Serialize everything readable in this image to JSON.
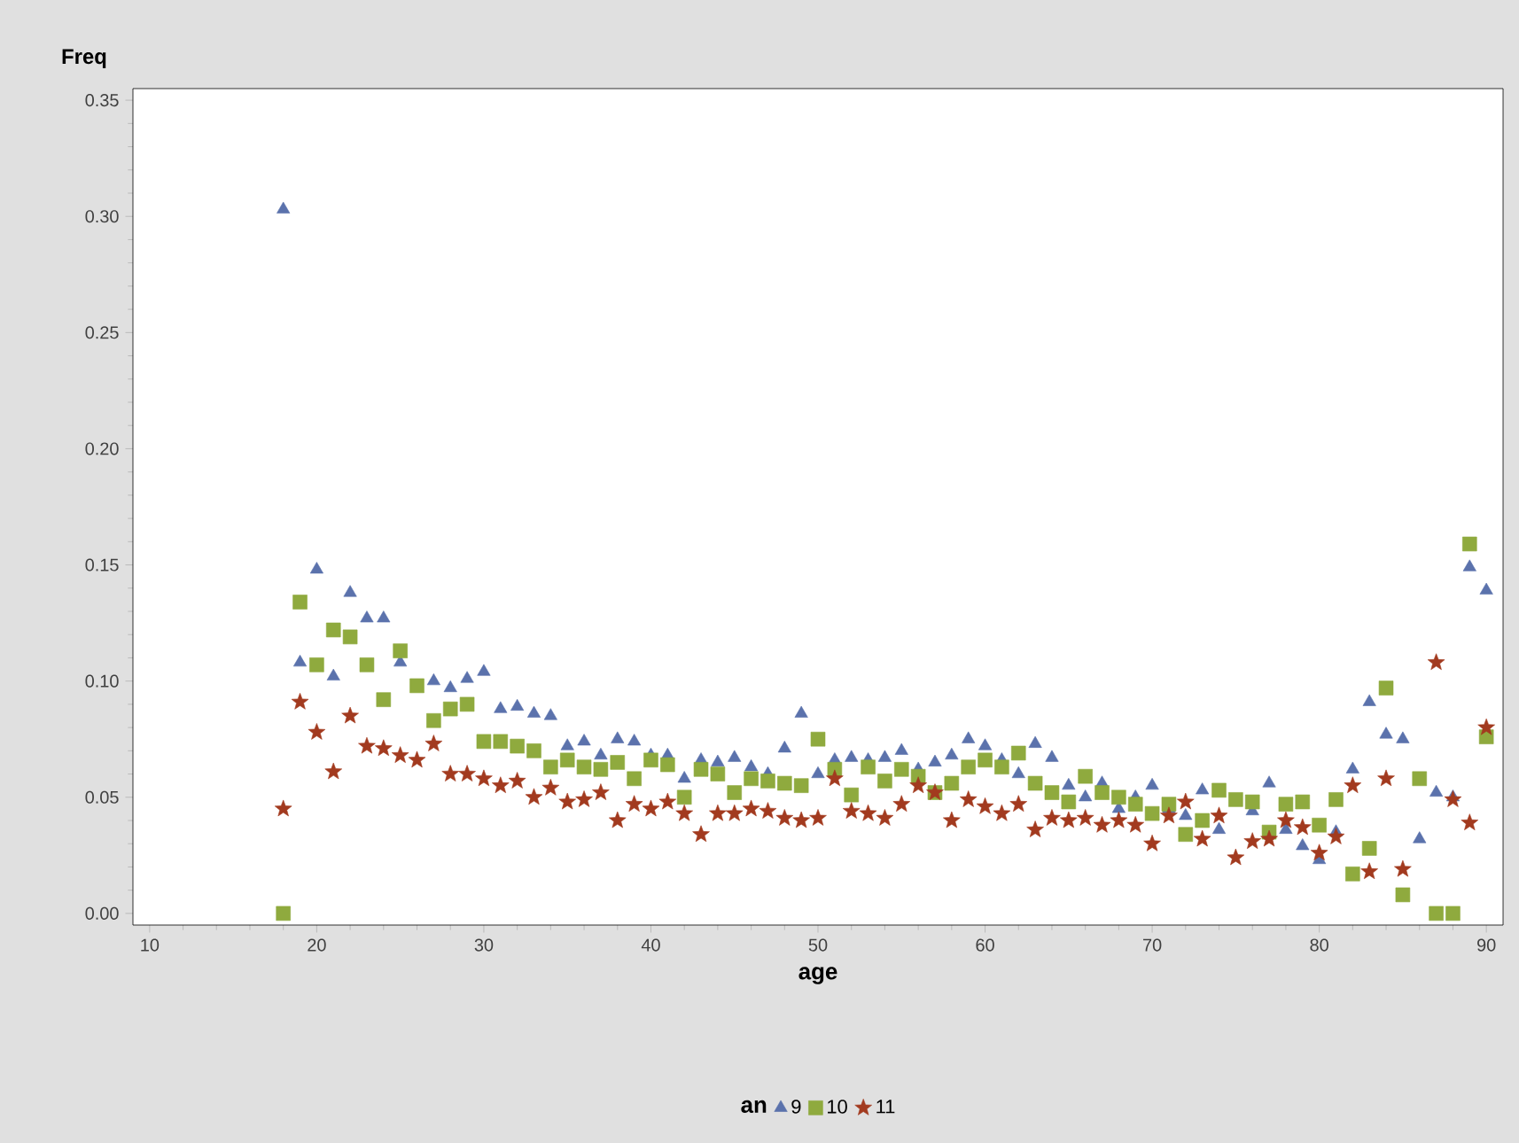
{
  "chart_data": {
    "type": "scatter",
    "xlabel": "age",
    "ylabel": "Freq",
    "legend_title": "an",
    "legend": "bottom",
    "x": [
      18,
      19,
      20,
      21,
      22,
      23,
      24,
      25,
      26,
      27,
      28,
      29,
      30,
      31,
      32,
      33,
      34,
      35,
      36,
      37,
      38,
      39,
      40,
      41,
      42,
      43,
      44,
      45,
      46,
      47,
      48,
      49,
      50,
      51,
      52,
      53,
      54,
      55,
      56,
      57,
      58,
      59,
      60,
      61,
      62,
      63,
      64,
      65,
      66,
      67,
      68,
      69,
      70,
      71,
      72,
      73,
      74,
      75,
      76,
      77,
      78,
      79,
      80,
      81,
      82,
      83,
      84,
      85,
      86,
      87,
      88,
      89,
      90
    ],
    "xlim": [
      9,
      91
    ],
    "xticks": [
      10,
      20,
      30,
      40,
      50,
      60,
      70,
      80,
      90
    ],
    "ylim": [
      -0.005,
      0.355
    ],
    "yticks": [
      {
        "value": 0,
        "label": "0.00"
      },
      {
        "value": 0.05,
        "label": "0.05"
      },
      {
        "value": 0.1,
        "label": "0.10"
      },
      {
        "value": 0.15,
        "label": "0.15"
      },
      {
        "value": 0.2,
        "label": "0.20"
      },
      {
        "value": 0.25,
        "label": "0.25"
      },
      {
        "value": 0.3,
        "label": "0.30"
      },
      {
        "value": 0.35,
        "label": "0.35"
      }
    ],
    "grid": false,
    "series": [
      {
        "name": "9",
        "color": "#5b72ac",
        "marker": "triangle",
        "values": [
          0.303,
          0.108,
          0.148,
          0.102,
          0.138,
          0.127,
          0.127,
          0.108,
          null,
          0.1,
          0.097,
          0.101,
          0.104,
          0.088,
          0.089,
          0.086,
          0.085,
          0.072,
          0.074,
          0.068,
          0.075,
          0.074,
          0.068,
          0.068,
          0.058,
          0.066,
          0.065,
          0.067,
          0.063,
          0.06,
          0.071,
          0.086,
          0.06,
          0.066,
          0.067,
          0.066,
          0.067,
          0.07,
          0.062,
          0.065,
          0.068,
          0.075,
          0.072,
          0.066,
          0.06,
          0.073,
          0.067,
          0.055,
          0.05,
          0.056,
          0.045,
          0.05,
          0.055,
          0.045,
          0.042,
          0.053,
          0.036,
          null,
          0.044,
          0.056,
          0.036,
          0.029,
          0.023,
          0.035,
          0.062,
          0.091,
          0.077,
          0.075,
          0.032,
          0.052,
          0.05,
          0.149,
          0.139
        ]
      },
      {
        "name": "10",
        "color": "#8faa3e",
        "marker": "square",
        "values": [
          0.0,
          0.134,
          0.107,
          0.122,
          0.119,
          0.107,
          0.092,
          0.113,
          0.098,
          0.083,
          0.088,
          0.09,
          0.074,
          0.074,
          0.072,
          0.07,
          0.063,
          0.066,
          0.063,
          0.062,
          0.065,
          0.058,
          0.066,
          0.064,
          0.05,
          0.062,
          0.06,
          0.052,
          0.058,
          0.057,
          0.056,
          0.055,
          0.075,
          0.062,
          0.051,
          0.063,
          0.057,
          0.062,
          0.059,
          0.052,
          0.056,
          0.063,
          0.066,
          0.063,
          0.069,
          0.056,
          0.052,
          0.048,
          0.059,
          0.052,
          0.05,
          0.047,
          0.043,
          0.047,
          0.034,
          0.04,
          0.053,
          0.049,
          0.048,
          0.035,
          0.047,
          0.048,
          0.038,
          0.049,
          0.017,
          0.028,
          0.097,
          0.008,
          0.058,
          0.0,
          0.0,
          0.159,
          0.076
        ]
      },
      {
        "name": "11",
        "color": "#a23a1f",
        "marker": "star",
        "values": [
          0.045,
          0.091,
          0.078,
          0.061,
          0.085,
          0.072,
          0.071,
          0.068,
          0.066,
          0.073,
          0.06,
          0.06,
          0.058,
          0.055,
          0.057,
          0.05,
          0.054,
          0.048,
          0.049,
          0.052,
          0.04,
          0.047,
          0.045,
          0.048,
          0.043,
          0.034,
          0.043,
          0.043,
          0.045,
          0.044,
          0.041,
          0.04,
          0.041,
          0.058,
          0.044,
          0.043,
          0.041,
          0.047,
          0.055,
          0.052,
          0.04,
          0.049,
          0.046,
          0.043,
          0.047,
          0.036,
          0.041,
          0.04,
          0.041,
          0.038,
          0.04,
          0.038,
          0.03,
          0.042,
          0.048,
          0.032,
          0.042,
          0.024,
          0.031,
          0.032,
          0.04,
          0.037,
          0.026,
          0.033,
          0.055,
          0.018,
          0.058,
          0.019,
          null,
          0.108,
          0.049,
          0.039,
          0.08
        ]
      }
    ]
  }
}
